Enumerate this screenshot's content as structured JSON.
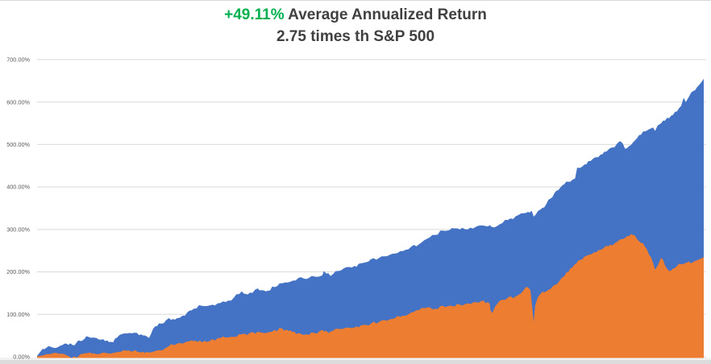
{
  "title": {
    "highlight": "+49.11%",
    "rest": " Average Annualized Return",
    "line2": "2.75 times th S&P 500"
  },
  "colors": {
    "accent_green": "#00B050",
    "title_gray": "#404040",
    "axis_label_gray": "#595959",
    "gridline": "#D9D9D9",
    "series_blue": "#4472C4",
    "series_orange": "#ED7D31",
    "strip_light": "#f2f2f2",
    "strip_gray": "#dcdcdc"
  },
  "chart_data": {
    "type": "area",
    "title": "+49.11% Average Annualized Return — 2.75 times th S&P 500",
    "xlabel": "",
    "ylabel": "",
    "ylim": [
      0,
      700
    ],
    "ytick_values": [
      0,
      100,
      200,
      300,
      400,
      500,
      600,
      700
    ],
    "ytick_labels": [
      "0.00%",
      "100.00%",
      "200.00%",
      "300.00%",
      "400.00%",
      "500.00%",
      "600.00%",
      "700.00%"
    ],
    "grid": true,
    "legend": "none",
    "x_unit": "percent_of_timeline_0_to_100",
    "y_unit": "cumulative_return_percent",
    "series": [
      {
        "name": "blue-series",
        "color": "#4472C4",
        "points": [
          [
            0,
            2
          ],
          [
            0.5,
            12
          ],
          [
            1.1,
            18
          ],
          [
            1.7,
            25
          ],
          [
            2.3,
            22
          ],
          [
            2.9,
            21
          ],
          [
            3.5,
            26
          ],
          [
            4.1,
            31
          ],
          [
            4.7,
            28
          ],
          [
            5.3,
            28
          ],
          [
            5.9,
            33
          ],
          [
            6.5,
            37
          ],
          [
            7.1,
            42
          ],
          [
            7.7,
            47
          ],
          [
            8.3,
            45
          ],
          [
            8.9,
            44
          ],
          [
            9.6,
            40
          ],
          [
            10.2,
            37
          ],
          [
            10.8,
            35
          ],
          [
            11.4,
            34
          ],
          [
            12,
            45
          ],
          [
            12.6,
            53
          ],
          [
            13.2,
            55
          ],
          [
            13.8,
            56
          ],
          [
            15,
            56
          ],
          [
            15.6,
            53
          ],
          [
            16.2,
            50
          ],
          [
            16.8,
            44
          ],
          [
            17.4,
            66
          ],
          [
            18,
            72
          ],
          [
            18.6,
            78
          ],
          [
            19.8,
            91
          ],
          [
            20.4,
            89
          ],
          [
            21,
            91
          ],
          [
            22.2,
            97
          ],
          [
            23.5,
            113
          ],
          [
            24.7,
            120
          ],
          [
            25.9,
            121
          ],
          [
            27.1,
            126
          ],
          [
            28.3,
            129
          ],
          [
            29.5,
            139
          ],
          [
            30.7,
            154
          ],
          [
            31.3,
            148
          ],
          [
            31.9,
            151
          ],
          [
            33.1,
            161
          ],
          [
            33.7,
            157
          ],
          [
            34.3,
            154
          ],
          [
            35.6,
            164
          ],
          [
            36.8,
            173
          ],
          [
            38,
            177
          ],
          [
            39.2,
            186
          ],
          [
            40.4,
            183
          ],
          [
            41.6,
            189
          ],
          [
            42.8,
            192
          ],
          [
            43,
            202
          ],
          [
            43.4,
            196
          ],
          [
            44,
            190
          ],
          [
            45.2,
            202
          ],
          [
            46.4,
            211
          ],
          [
            47.6,
            214
          ],
          [
            48.9,
            221
          ],
          [
            50.1,
            230
          ],
          [
            51.3,
            233
          ],
          [
            52.5,
            237
          ],
          [
            53.7,
            243
          ],
          [
            54.9,
            249
          ],
          [
            56.1,
            259
          ],
          [
            57.3,
            265
          ],
          [
            58.5,
            278
          ],
          [
            59.7,
            287
          ],
          [
            60.9,
            297
          ],
          [
            62.2,
            303
          ],
          [
            63.4,
            300
          ],
          [
            64.6,
            300
          ],
          [
            65.8,
            306
          ],
          [
            67,
            309
          ],
          [
            67.6,
            307
          ],
          [
            68.2,
            306
          ],
          [
            69.4,
            312
          ],
          [
            70.6,
            322
          ],
          [
            71.8,
            331
          ],
          [
            73,
            338
          ],
          [
            73.6,
            341
          ],
          [
            74.2,
            344
          ],
          [
            74.5,
            330
          ],
          [
            74.8,
            335
          ],
          [
            75.5,
            347
          ],
          [
            76.1,
            352
          ],
          [
            76.7,
            370
          ],
          [
            77.3,
            376
          ],
          [
            77.9,
            391
          ],
          [
            78.5,
            399
          ],
          [
            79.1,
            407
          ],
          [
            79.7,
            412
          ],
          [
            80.3,
            417
          ],
          [
            80.7,
            420
          ],
          [
            81,
            445
          ],
          [
            81.5,
            445
          ],
          [
            82.1,
            453
          ],
          [
            82.7,
            461
          ],
          [
            83.3,
            465
          ],
          [
            83.9,
            470
          ],
          [
            84.5,
            476
          ],
          [
            85.1,
            483
          ],
          [
            85.7,
            488
          ],
          [
            86.3,
            493
          ],
          [
            86.9,
            500
          ],
          [
            87.5,
            508
          ],
          [
            88.2,
            490
          ],
          [
            88.8,
            496
          ],
          [
            89.4,
            505
          ],
          [
            90,
            515
          ],
          [
            90.6,
            523
          ],
          [
            91.2,
            531
          ],
          [
            91.8,
            536
          ],
          [
            92.4,
            540
          ],
          [
            92.7,
            532
          ],
          [
            93.1,
            545
          ],
          [
            93.6,
            550
          ],
          [
            94.2,
            556
          ],
          [
            94.8,
            562
          ],
          [
            95.4,
            570
          ],
          [
            96,
            578
          ],
          [
            96.6,
            591
          ],
          [
            97,
            610
          ],
          [
            97.3,
            600
          ],
          [
            97.8,
            613
          ],
          [
            98.4,
            626
          ],
          [
            99,
            635
          ],
          [
            99.4,
            642
          ],
          [
            99.8,
            650
          ],
          [
            100,
            655
          ]
        ]
      },
      {
        "name": "orange-series",
        "color": "#ED7D31",
        "points": [
          [
            0,
            1
          ],
          [
            0.5,
            2
          ],
          [
            1.1,
            4
          ],
          [
            1.7,
            6
          ],
          [
            2.3,
            8
          ],
          [
            2.9,
            9
          ],
          [
            3.5,
            7
          ],
          [
            4.1,
            6
          ],
          [
            4.7,
            2
          ],
          [
            5.1,
            -3
          ],
          [
            5.6,
            1
          ],
          [
            5.9,
            -2
          ],
          [
            6.3,
            2
          ],
          [
            6.5,
            6
          ],
          [
            7.1,
            8
          ],
          [
            7.7,
            9
          ],
          [
            8.3,
            7
          ],
          [
            8.9,
            6
          ],
          [
            9.6,
            8
          ],
          [
            10.2,
            9
          ],
          [
            11.4,
            9
          ],
          [
            12,
            11
          ],
          [
            12.6,
            12
          ],
          [
            13.8,
            15
          ],
          [
            14.4,
            13
          ],
          [
            15,
            12
          ],
          [
            15.6,
            10
          ],
          [
            16.2,
            9
          ],
          [
            16.8,
            10
          ],
          [
            17.4,
            12
          ],
          [
            18.6,
            15
          ],
          [
            19.2,
            20
          ],
          [
            19.8,
            25
          ],
          [
            20.4,
            28
          ],
          [
            21,
            31
          ],
          [
            22.2,
            34
          ],
          [
            23.5,
            37
          ],
          [
            24.1,
            35
          ],
          [
            24.7,
            34
          ],
          [
            25.9,
            37
          ],
          [
            27.1,
            44
          ],
          [
            28.3,
            45
          ],
          [
            29.5,
            47
          ],
          [
            30.7,
            53
          ],
          [
            31.9,
            56
          ],
          [
            33.1,
            59
          ],
          [
            33.7,
            57
          ],
          [
            34.3,
            56
          ],
          [
            35.6,
            63
          ],
          [
            36.8,
            66
          ],
          [
            37.4,
            64
          ],
          [
            38,
            62
          ],
          [
            38.6,
            59
          ],
          [
            39.2,
            56
          ],
          [
            40.4,
            53
          ],
          [
            41.6,
            56
          ],
          [
            42.8,
            63
          ],
          [
            43.4,
            61
          ],
          [
            44,
            59
          ],
          [
            45.2,
            66
          ],
          [
            46.4,
            69
          ],
          [
            47.6,
            69
          ],
          [
            48.9,
            75
          ],
          [
            50.1,
            78
          ],
          [
            51.3,
            82
          ],
          [
            52.5,
            85
          ],
          [
            53.7,
            91
          ],
          [
            54.9,
            97
          ],
          [
            56.1,
            104
          ],
          [
            57.3,
            110
          ],
          [
            58.5,
            116
          ],
          [
            59.1,
            114
          ],
          [
            59.7,
            113
          ],
          [
            60.9,
            120
          ],
          [
            62.2,
            120
          ],
          [
            63.4,
            123
          ],
          [
            64.6,
            126
          ],
          [
            65.8,
            129
          ],
          [
            67,
            132
          ],
          [
            67.9,
            125
          ],
          [
            68,
            110
          ],
          [
            68.3,
            103
          ],
          [
            68.7,
            118
          ],
          [
            69.4,
            132
          ],
          [
            70.6,
            139
          ],
          [
            71.8,
            142
          ],
          [
            73,
            157
          ],
          [
            73.6,
            164
          ],
          [
            74,
            157
          ],
          [
            74.5,
            82
          ],
          [
            74.7,
            120
          ],
          [
            75.1,
            140
          ],
          [
            75.5,
            148
          ],
          [
            76.1,
            152
          ],
          [
            76.7,
            158
          ],
          [
            77.3,
            165
          ],
          [
            77.9,
            170
          ],
          [
            78.5,
            182
          ],
          [
            79.1,
            190
          ],
          [
            79.7,
            200
          ],
          [
            80.3,
            210
          ],
          [
            80.9,
            220
          ],
          [
            81.5,
            228
          ],
          [
            82.1,
            236
          ],
          [
            82.7,
            240
          ],
          [
            83.3,
            243
          ],
          [
            83.9,
            246
          ],
          [
            84.5,
            252
          ],
          [
            85.1,
            258
          ],
          [
            85.7,
            260
          ],
          [
            86.3,
            262
          ],
          [
            86.9,
            270
          ],
          [
            87.5,
            277
          ],
          [
            88.2,
            280
          ],
          [
            88.8,
            284
          ],
          [
            89.4,
            287
          ],
          [
            90,
            277
          ],
          [
            90.6,
            268
          ],
          [
            91.2,
            259
          ],
          [
            91.8,
            240
          ],
          [
            92.4,
            221
          ],
          [
            92.7,
            205
          ],
          [
            93.1,
            215
          ],
          [
            93.6,
            233
          ],
          [
            94.2,
            215
          ],
          [
            94.8,
            202
          ],
          [
            95.4,
            208
          ],
          [
            96,
            214
          ],
          [
            96.6,
            218
          ],
          [
            97.3,
            221
          ],
          [
            97.8,
            224
          ],
          [
            98.1,
            220
          ],
          [
            98.6,
            225
          ],
          [
            99,
            227
          ],
          [
            99.4,
            230
          ],
          [
            99.8,
            233
          ],
          [
            100,
            235
          ]
        ]
      }
    ]
  }
}
